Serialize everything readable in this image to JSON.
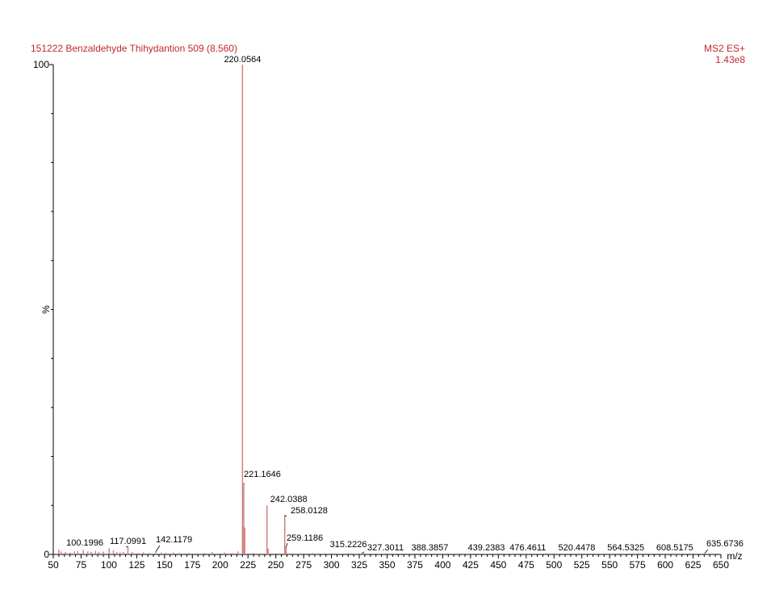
{
  "header": {
    "title": "151222 Benzaldehyde Thihydantion 509 (8.560)",
    "mode": "MS2 ES+",
    "scale": "1.43e8"
  },
  "colors": {
    "header_text": "#c0282d",
    "peak": "#d0797a",
    "axis": "#000000"
  },
  "chart_data": {
    "type": "bar",
    "title": "151222 Benzaldehyde Thihydantion 509 (8.560)",
    "xlabel": "m/z",
    "ylabel": "%",
    "xlim": [
      50,
      650
    ],
    "ylim": [
      0,
      100
    ],
    "x_ticks": [
      50,
      75,
      100,
      125,
      150,
      175,
      200,
      225,
      250,
      275,
      300,
      325,
      350,
      375,
      400,
      425,
      450,
      475,
      500,
      525,
      550,
      575,
      600,
      625,
      650
    ],
    "y_ticks": [
      0,
      100
    ],
    "grid": false,
    "peaks": [
      {
        "mz": 220.0564,
        "intensity": 100,
        "label": "220.0564"
      },
      {
        "mz": 221.1646,
        "intensity": 14.5,
        "label": "221.1646"
      },
      {
        "mz": 222.05,
        "intensity": 5.5,
        "label": ""
      },
      {
        "mz": 242.0388,
        "intensity": 10,
        "label": "242.0388"
      },
      {
        "mz": 243.05,
        "intensity": 1.2,
        "label": ""
      },
      {
        "mz": 258.0128,
        "intensity": 8,
        "label": "258.0128"
      },
      {
        "mz": 259.1186,
        "intensity": 1.4,
        "label": "259.1186"
      },
      {
        "mz": 100.1996,
        "intensity": 1.2,
        "label": "100.1996"
      },
      {
        "mz": 117.0991,
        "intensity": 1.6,
        "label": "117.0991"
      },
      {
        "mz": 142.1179,
        "intensity": 0.6,
        "label": "142.1179"
      },
      {
        "mz": 315.2226,
        "intensity": 0.3,
        "label": "315.2226"
      },
      {
        "mz": 327.3011,
        "intensity": 0.2,
        "label": "327.3011"
      },
      {
        "mz": 388.3857,
        "intensity": 0.1,
        "label": "388.3857"
      },
      {
        "mz": 439.2383,
        "intensity": 0.1,
        "label": "439.2383"
      },
      {
        "mz": 476.4611,
        "intensity": 0.1,
        "label": "476.4611"
      },
      {
        "mz": 520.4478,
        "intensity": 0.1,
        "label": "520.4478"
      },
      {
        "mz": 564.5325,
        "intensity": 0.1,
        "label": "564.5325"
      },
      {
        "mz": 608.5175,
        "intensity": 0.1,
        "label": "608.5175"
      },
      {
        "mz": 635.6736,
        "intensity": 0.3,
        "label": "635.6736"
      },
      {
        "mz": 55,
        "intensity": 1.0,
        "label": ""
      },
      {
        "mz": 57,
        "intensity": 0.6,
        "label": ""
      },
      {
        "mz": 61,
        "intensity": 0.5,
        "label": ""
      },
      {
        "mz": 65,
        "intensity": 0.4,
        "label": ""
      },
      {
        "mz": 69,
        "intensity": 0.6,
        "label": ""
      },
      {
        "mz": 72,
        "intensity": 0.7,
        "label": ""
      },
      {
        "mz": 77,
        "intensity": 0.9,
        "label": ""
      },
      {
        "mz": 81,
        "intensity": 0.6,
        "label": ""
      },
      {
        "mz": 84,
        "intensity": 0.5,
        "label": ""
      },
      {
        "mz": 88,
        "intensity": 0.7,
        "label": ""
      },
      {
        "mz": 91,
        "intensity": 0.5,
        "label": ""
      },
      {
        "mz": 95,
        "intensity": 0.6,
        "label": ""
      },
      {
        "mz": 104,
        "intensity": 0.8,
        "label": ""
      },
      {
        "mz": 107,
        "intensity": 0.5,
        "label": ""
      },
      {
        "mz": 110,
        "intensity": 0.4,
        "label": ""
      },
      {
        "mz": 113,
        "intensity": 0.5,
        "label": ""
      },
      {
        "mz": 121,
        "intensity": 0.5,
        "label": ""
      },
      {
        "mz": 126,
        "intensity": 0.3,
        "label": ""
      },
      {
        "mz": 131,
        "intensity": 0.4,
        "label": ""
      },
      {
        "mz": 136,
        "intensity": 0.3,
        "label": ""
      },
      {
        "mz": 147,
        "intensity": 0.4,
        "label": ""
      },
      {
        "mz": 151,
        "intensity": 0.3,
        "label": ""
      },
      {
        "mz": 158,
        "intensity": 0.4,
        "label": ""
      },
      {
        "mz": 163,
        "intensity": 0.3,
        "label": ""
      },
      {
        "mz": 172,
        "intensity": 0.3,
        "label": ""
      },
      {
        "mz": 180,
        "intensity": 0.2,
        "label": ""
      },
      {
        "mz": 186,
        "intensity": 0.3,
        "label": ""
      },
      {
        "mz": 193,
        "intensity": 0.5,
        "label": ""
      },
      {
        "mz": 204,
        "intensity": 0.4,
        "label": ""
      },
      {
        "mz": 211,
        "intensity": 0.3,
        "label": ""
      },
      {
        "mz": 216,
        "intensity": 0.6,
        "label": ""
      },
      {
        "mz": 230,
        "intensity": 0.3,
        "label": ""
      },
      {
        "mz": 236,
        "intensity": 0.2,
        "label": ""
      },
      {
        "mz": 248,
        "intensity": 0.2,
        "label": ""
      },
      {
        "mz": 265,
        "intensity": 0.2,
        "label": ""
      },
      {
        "mz": 272,
        "intensity": 0.2,
        "label": ""
      },
      {
        "mz": 283,
        "intensity": 0.3,
        "label": ""
      },
      {
        "mz": 300,
        "intensity": 0.2,
        "label": ""
      }
    ]
  }
}
